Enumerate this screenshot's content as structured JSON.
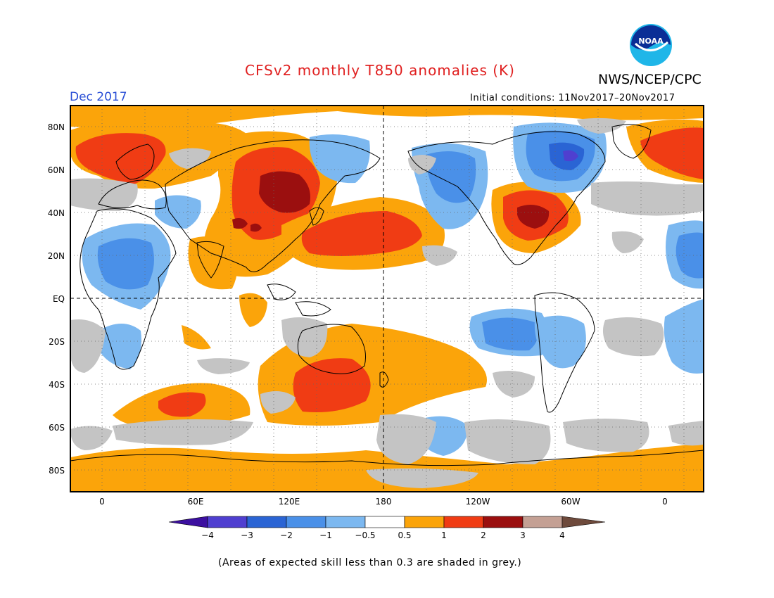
{
  "header": {
    "title": "CFSv2 monthly T850 anomalies (K)",
    "agency": "NWS/NCEP/CPC",
    "logo_text": "NOAA",
    "valid_month": "Dec 2017",
    "initial_conditions": "Initial conditions: 11Nov2017–20Nov2017"
  },
  "map": {
    "projection": "cylindrical equidistant",
    "lat_labels": [
      "80N",
      "60N",
      "40N",
      "20N",
      "EQ",
      "20S",
      "40S",
      "60S",
      "80S"
    ],
    "lon_labels": [
      "0",
      "60E",
      "120E",
      "180",
      "120W",
      "60W",
      "0"
    ],
    "colors": {
      "very_strong_warm": "#9b0f0f",
      "strong_warm": "#f03c14",
      "warm": "#fba40a",
      "neutral": "#ffffff",
      "weak_cool": "#7cb8f0",
      "cool": "#4a90e8",
      "strong_cool": "#2a64d4",
      "very_strong_cool": "#4f3fd0",
      "low_skill": "#c4c4c4"
    }
  },
  "colorbar": {
    "labels": [
      "−4",
      "−3",
      "−2",
      "−1",
      "−0.5",
      "0.5",
      "1",
      "2",
      "3",
      "4"
    ],
    "colors": [
      "#3c0fa0",
      "#4f3fd0",
      "#2a64d4",
      "#4a90e8",
      "#7cb8f0",
      "#ffffff",
      "#fba40a",
      "#f03c14",
      "#9b0f0f",
      "#c4a094",
      "#6e4a3c"
    ]
  },
  "footnote": "(Areas of expected skill less than 0.3 are shaded in grey.)"
}
